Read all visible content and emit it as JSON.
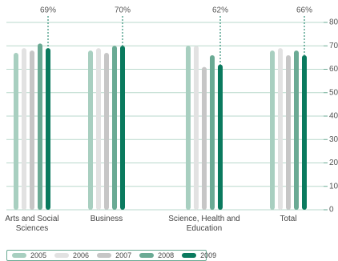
{
  "chart_data": {
    "type": "bar",
    "categories": [
      "Arts and Social Sciences",
      "Business",
      "Science, Health and Education",
      "Total"
    ],
    "series": [
      {
        "name": "2005",
        "color": "#a8cfc0",
        "values": [
          67,
          68,
          70,
          68
        ]
      },
      {
        "name": "2006",
        "color": "#e2e2e2",
        "values": [
          69,
          69,
          70,
          69
        ]
      },
      {
        "name": "2007",
        "color": "#c6c6c6",
        "values": [
          68,
          67,
          61,
          66
        ]
      },
      {
        "name": "2008",
        "color": "#6aaa94",
        "values": [
          71,
          70,
          66,
          68
        ]
      },
      {
        "name": "2009",
        "color": "#0a7a5e",
        "values": [
          69,
          70,
          62,
          66
        ],
        "value_labels": [
          "69%",
          "70%",
          "62%",
          "66%"
        ]
      }
    ],
    "ylim": [
      0,
      80
    ],
    "yticks": [
      0,
      10,
      20,
      30,
      40,
      50,
      60,
      70,
      80
    ],
    "grid": true,
    "legend": "bottom"
  }
}
